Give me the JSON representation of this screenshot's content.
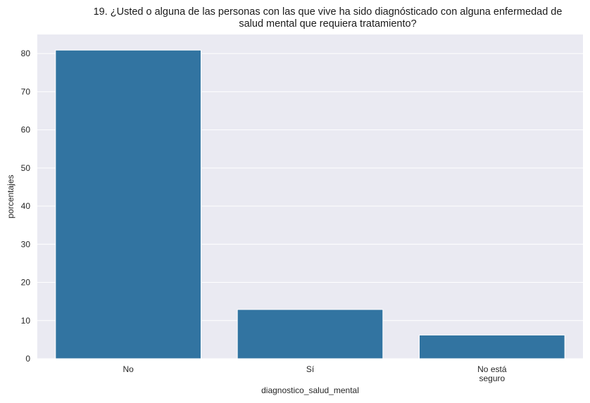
{
  "chart_data": {
    "type": "bar",
    "title_lines": [
      "19. ¿Usted o alguna de las personas con las que vive ha sido diagnósticado con alguna enfermedad de",
      "salud mental que requiera tratamiento?"
    ],
    "xlabel": "diagnostico_salud_mental",
    "ylabel": "porcentajes",
    "categories": [
      {
        "label_lines": [
          "No"
        ],
        "value": 80.9
      },
      {
        "label_lines": [
          "Sí"
        ],
        "value": 12.9
      },
      {
        "label_lines": [
          "No está",
          "seguro"
        ],
        "value": 6.2
      }
    ],
    "ylim": [
      0,
      85
    ],
    "yticks": [
      0,
      10,
      20,
      30,
      40,
      50,
      60,
      70,
      80
    ],
    "grid": true,
    "colors": {
      "bar": "#3274a1",
      "background": "#eaeaf2",
      "grid": "#ffffff"
    }
  }
}
